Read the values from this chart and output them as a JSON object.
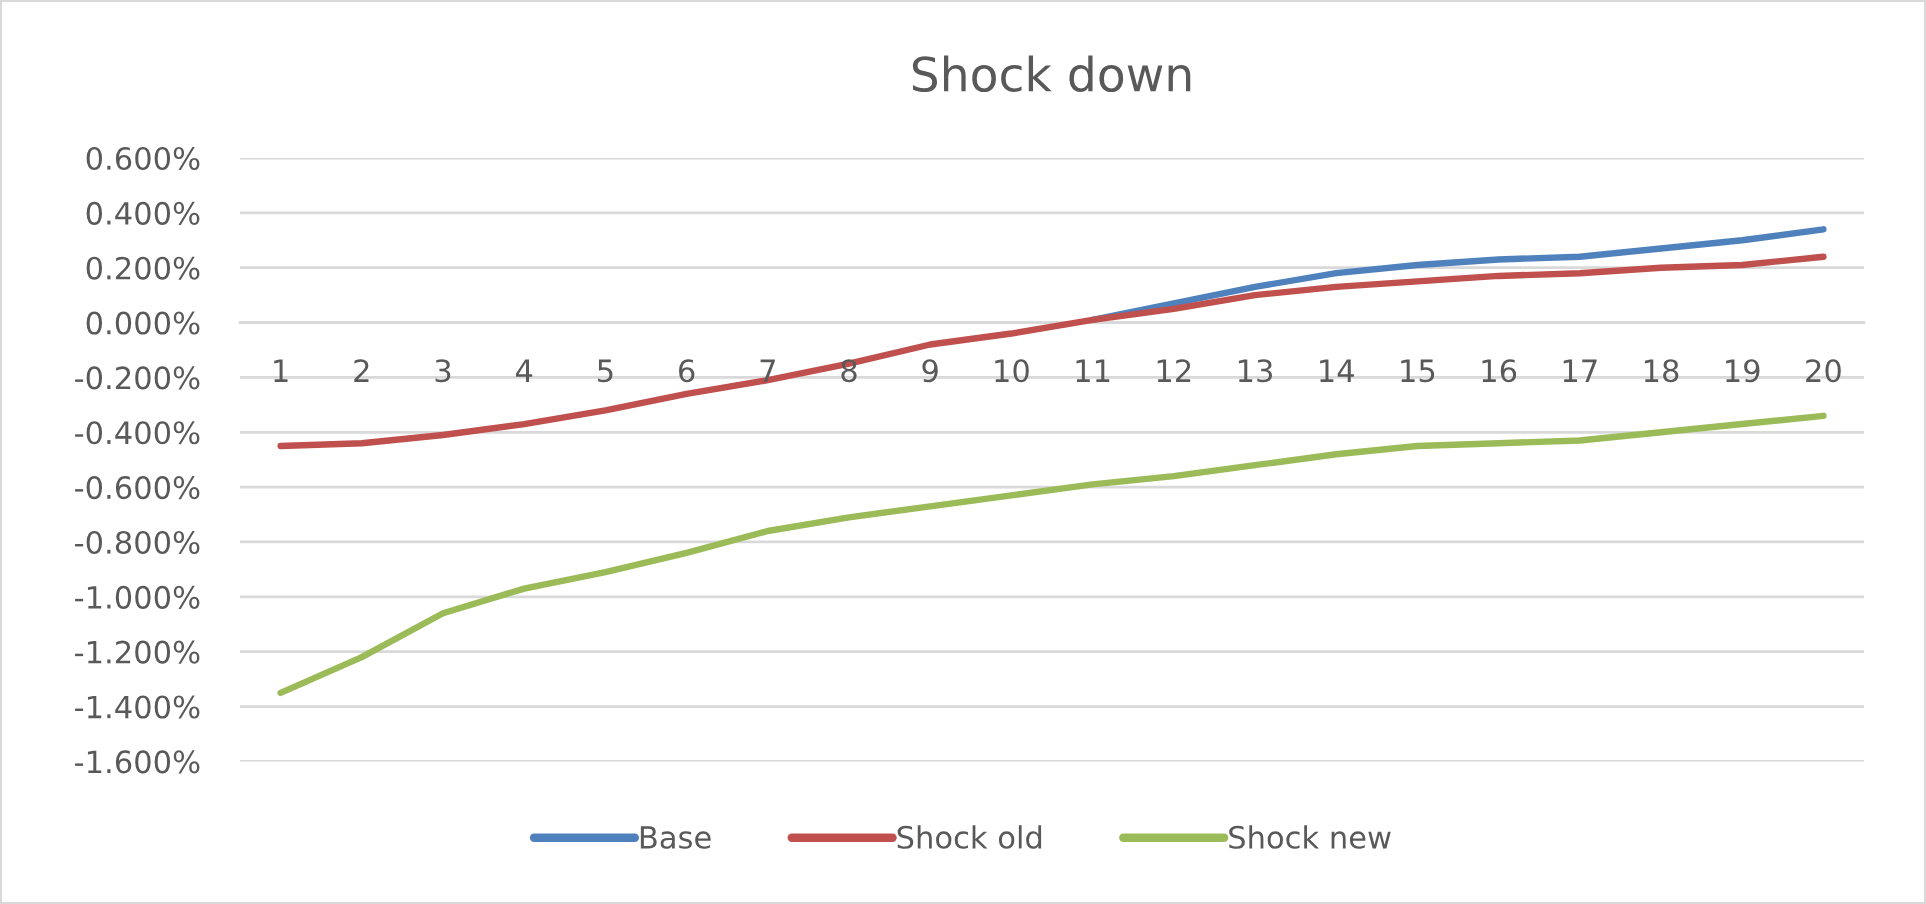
{
  "chart_data": {
    "type": "line",
    "title": "Shock down",
    "categories": [
      "1",
      "2",
      "3",
      "4",
      "5",
      "6",
      "7",
      "8",
      "9",
      "10",
      "11",
      "12",
      "13",
      "14",
      "15",
      "16",
      "17",
      "18",
      "19",
      "20"
    ],
    "series": [
      {
        "name": "Base",
        "color": "#4f81bd",
        "values": [
          null,
          null,
          null,
          null,
          null,
          null,
          null,
          null,
          null,
          null,
          0.01,
          0.07,
          0.13,
          0.18,
          0.21,
          0.23,
          0.24,
          0.27,
          0.3,
          0.34
        ]
      },
      {
        "name": "Shock old",
        "color": "#c0504d",
        "values": [
          -0.45,
          -0.44,
          -0.41,
          -0.37,
          -0.32,
          -0.26,
          -0.21,
          -0.15,
          -0.08,
          -0.04,
          0.01,
          0.05,
          0.1,
          0.13,
          0.15,
          0.17,
          0.18,
          0.2,
          0.21,
          0.24
        ]
      },
      {
        "name": "Shock new",
        "color": "#9bbb59",
        "values": [
          -1.35,
          -1.22,
          -1.06,
          -0.97,
          -0.91,
          -0.84,
          -0.76,
          -0.71,
          -0.67,
          -0.63,
          -0.59,
          -0.56,
          -0.52,
          -0.48,
          -0.45,
          -0.44,
          -0.43,
          -0.4,
          -0.37,
          -0.34
        ]
      }
    ],
    "ylim": [
      -1.6,
      0.6
    ],
    "yticks": [
      {
        "value": -1.6,
        "label": "-1.600%"
      },
      {
        "value": -1.4,
        "label": "-1.400%"
      },
      {
        "value": -1.2,
        "label": "-1.200%"
      },
      {
        "value": -1.0,
        "label": "-1.000%"
      },
      {
        "value": -0.8,
        "label": "-0.800%"
      },
      {
        "value": -0.6,
        "label": "-0.600%"
      },
      {
        "value": -0.4,
        "label": "-0.400%"
      },
      {
        "value": -0.2,
        "label": "-0.200%"
      },
      {
        "value": 0,
        "label": "0.000%"
      },
      {
        "value": 0.2,
        "label": "0.200%"
      },
      {
        "value": 0.4,
        "label": "0.400%"
      },
      {
        "value": 0.6,
        "label": "0.600%"
      }
    ],
    "grid": "y",
    "legend": "bottom",
    "line_style": "solid"
  }
}
